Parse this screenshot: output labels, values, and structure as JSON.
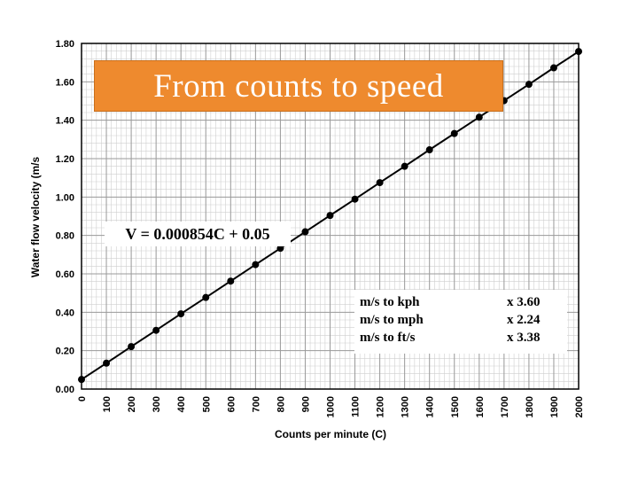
{
  "slide_title": "From counts to speed",
  "annotations": {
    "equation": "V = 0.000854C + 0.05",
    "conversions": [
      {
        "label": "m/s to kph",
        "factor": "x  3.60"
      },
      {
        "label": "m/s to mph",
        "factor": "x  2.24"
      },
      {
        "label": "m/s to ft/s",
        "factor": "x  3.38"
      }
    ]
  },
  "colors": {
    "title_bg": "#ee8a2e",
    "title_text": "#ffffff",
    "line": "#000000",
    "grid": "#9a9a9a"
  },
  "chart_data": {
    "type": "line",
    "title": "",
    "xlabel": "Counts per minute (C)",
    "ylabel": "Water flow velocity (m/s",
    "xlim": [
      0,
      2000
    ],
    "ylim": [
      0,
      1.8
    ],
    "x_ticks": [
      "0",
      "100",
      "200",
      "300",
      "400",
      "500",
      "600",
      "700",
      "800",
      "900",
      "1000",
      "1100",
      "1200",
      "1300",
      "1400",
      "1500",
      "1600",
      "1700",
      "1800",
      "1900",
      "2000"
    ],
    "y_ticks": [
      "0.00",
      "0.20",
      "0.40",
      "0.60",
      "0.80",
      "1.00",
      "1.20",
      "1.40",
      "1.60",
      "1.80"
    ],
    "grid": true,
    "series": [
      {
        "x": [
          0,
          100,
          200,
          300,
          400,
          500,
          600,
          700,
          800,
          900,
          1000,
          1100,
          1200,
          1300,
          1400,
          1500,
          1600,
          1700,
          1800,
          1900,
          2000
        ],
        "y": [
          0.05,
          0.135,
          0.221,
          0.306,
          0.392,
          0.477,
          0.562,
          0.648,
          0.733,
          0.819,
          0.904,
          0.989,
          1.075,
          1.16,
          1.246,
          1.331,
          1.416,
          1.502,
          1.587,
          1.673,
          1.758
        ]
      }
    ]
  }
}
